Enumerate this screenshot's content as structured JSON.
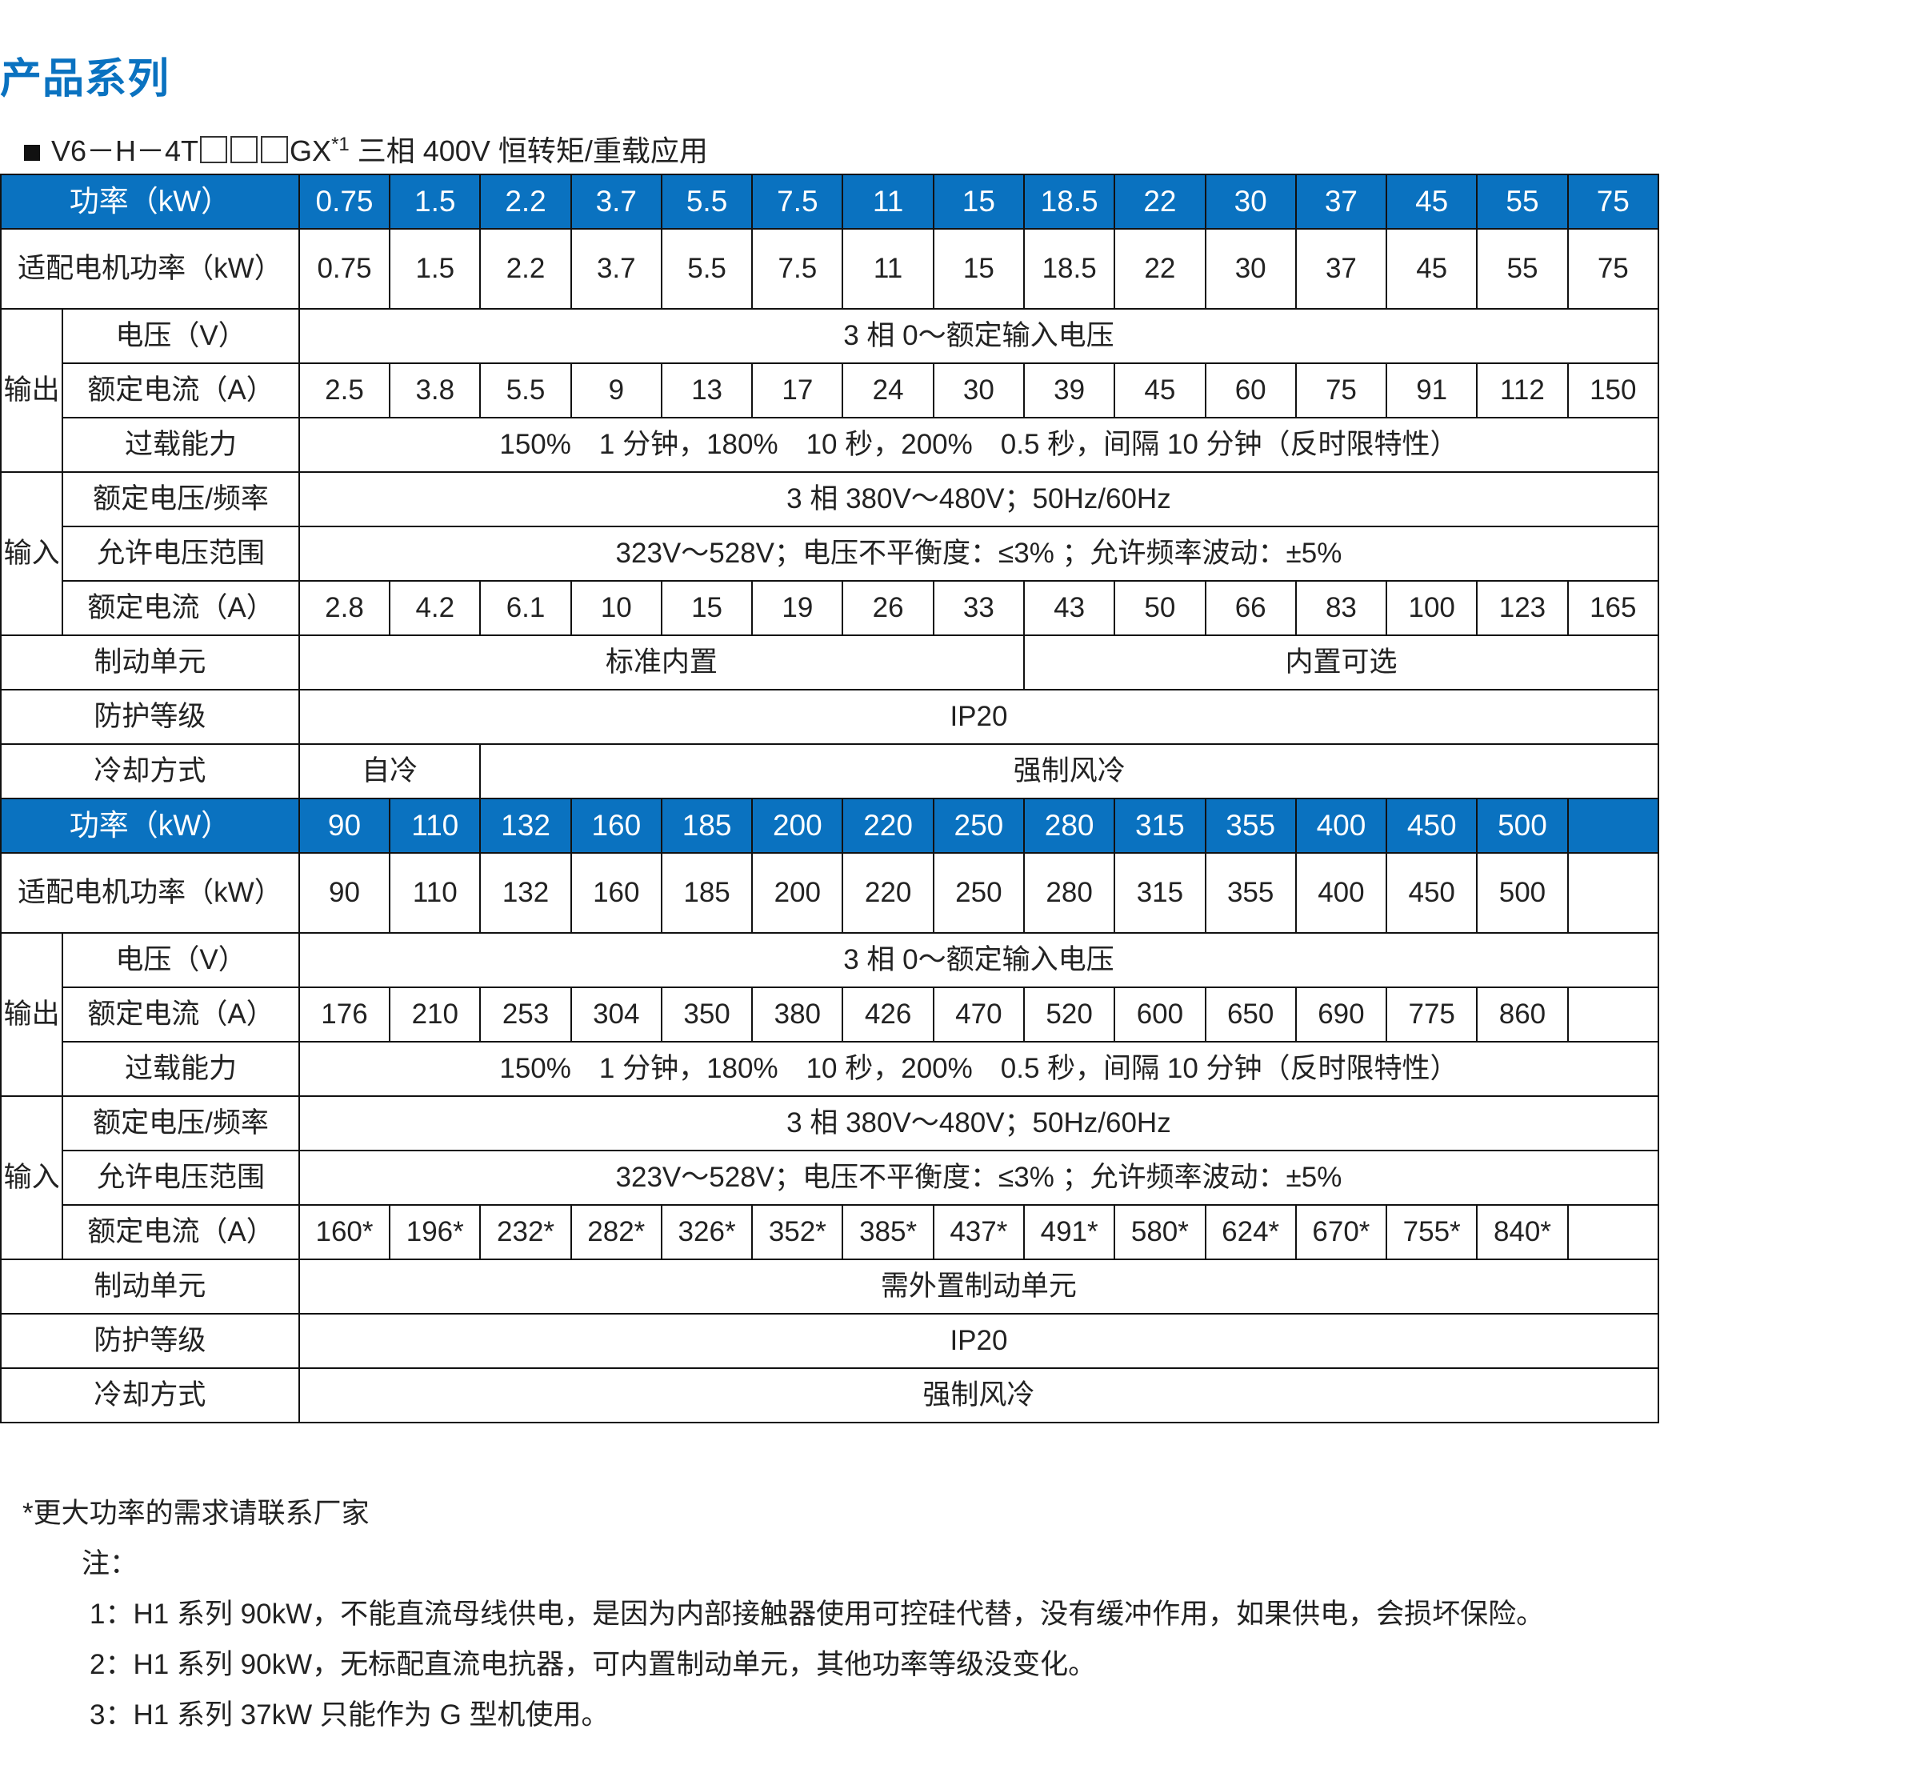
{
  "title": "产品系列",
  "subtitle": {
    "model_prefix": "V6－H－4T",
    "model_suffix": "GX",
    "footnote_mark": "*1",
    "text": "三相 400V 恒转矩/重载应用"
  },
  "colors": {
    "accent": "#0a72c0"
  },
  "labels": {
    "power": "功率（kW）",
    "motor_power": "适配电机功率（kW）",
    "output": "输出",
    "input": "输入",
    "voltage": "电压（V）",
    "rated_current": "额定电流（A）",
    "overload": "过载能力",
    "rated_voltage_freq": "额定电压/频率",
    "voltage_range": "允许电压范围",
    "braking": "制动单元",
    "protection": "防护等级",
    "cooling": "冷却方式"
  },
  "sections": [
    {
      "power": [
        "0.75",
        "1.5",
        "2.2",
        "3.7",
        "5.5",
        "7.5",
        "11",
        "15",
        "18.5",
        "22",
        "30",
        "37",
        "45",
        "55",
        "75"
      ],
      "motor_power": [
        "0.75",
        "1.5",
        "2.2",
        "3.7",
        "5.5",
        "7.5",
        "11",
        "15",
        "18.5",
        "22",
        "30",
        "37",
        "45",
        "55",
        "75"
      ],
      "output_voltage": "3 相 0～额定输入电压",
      "output_current": [
        "2.5",
        "3.8",
        "5.5",
        "9",
        "13",
        "17",
        "24",
        "30",
        "39",
        "45",
        "60",
        "75",
        "91",
        "112",
        "150"
      ],
      "overload": "150%　1 分钟，180%　10 秒，200%　0.5 秒，间隔 10 分钟（反时限特性）",
      "input_voltage_freq": "3 相 380V～480V；50Hz/60Hz",
      "input_range": "323V～528V；电压不平衡度：≤3% ；允许频率波动：±5%",
      "input_current": [
        "2.8",
        "4.2",
        "6.1",
        "10",
        "15",
        "19",
        "26",
        "33",
        "43",
        "50",
        "66",
        "83",
        "100",
        "123",
        "165"
      ],
      "braking": [
        {
          "text": "标准内置",
          "span": 8
        },
        {
          "text": "内置可选",
          "span": 7
        }
      ],
      "protection": "IP20",
      "cooling": [
        {
          "text": "自冷",
          "span": 2
        },
        {
          "text": "强制风冷",
          "span": 13
        }
      ]
    },
    {
      "power": [
        "90",
        "110",
        "132",
        "160",
        "185",
        "200",
        "220",
        "250",
        "280",
        "315",
        "355",
        "400",
        "450",
        "500",
        ""
      ],
      "motor_power": [
        "90",
        "110",
        "132",
        "160",
        "185",
        "200",
        "220",
        "250",
        "280",
        "315",
        "355",
        "400",
        "450",
        "500",
        ""
      ],
      "output_voltage": "3 相 0～额定输入电压",
      "output_current": [
        "176",
        "210",
        "253",
        "304",
        "350",
        "380",
        "426",
        "470",
        "520",
        "600",
        "650",
        "690",
        "775",
        "860",
        ""
      ],
      "overload": "150%　1 分钟，180%　10 秒，200%　0.5 秒，间隔 10 分钟（反时限特性）",
      "input_voltage_freq": "3 相 380V～480V；50Hz/60Hz",
      "input_range": "323V～528V；电压不平衡度：≤3% ；允许频率波动：±5%",
      "input_current": [
        "160*",
        "196*",
        "232*",
        "282*",
        "326*",
        "352*",
        "385*",
        "437*",
        "491*",
        "580*",
        "624*",
        "670*",
        "755*",
        "840*",
        ""
      ],
      "braking": [
        {
          "text": "需外置制动单元",
          "span": 15
        }
      ],
      "protection": "IP20",
      "cooling": [
        {
          "text": "强制风冷",
          "span": 15
        }
      ]
    }
  ],
  "notes": {
    "footnote": "*更大功率的需求请联系厂家",
    "heading": "注：",
    "items": [
      "1：H1 系列 90kW，不能直流母线供电，是因为内部接触器使用可控硅代替，没有缓冲作用，如果供电，会损坏保险。",
      "2：H1 系列 90kW，无标配直流电抗器，可内置制动单元，其他功率等级没变化。",
      "3：H1 系列 37kW 只能作为 G 型机使用。"
    ]
  }
}
